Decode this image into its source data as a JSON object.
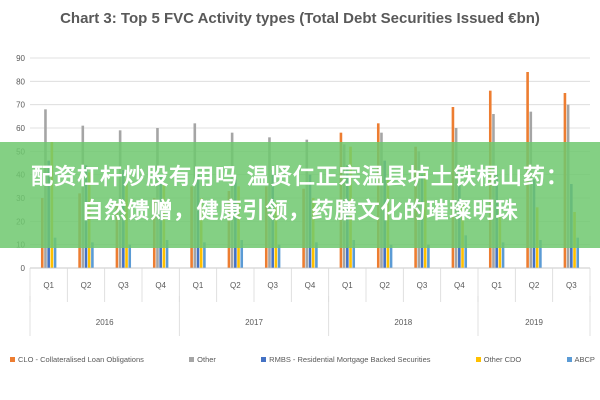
{
  "chart_data": {
    "type": "bar",
    "title": "Chart 3: Top 5 FVC Activity types (Total Debt Securities Issued €bn)",
    "categories": [
      "Q1",
      "Q2",
      "Q3",
      "Q4",
      "Q1",
      "Q2",
      "Q3",
      "Q4",
      "Q1",
      "Q2",
      "Q3",
      "Q4",
      "Q1",
      "Q2",
      "Q3"
    ],
    "groups": [
      {
        "label": "2016",
        "span": 4
      },
      {
        "label": "2017",
        "span": 4
      },
      {
        "label": "2018",
        "span": 4
      },
      {
        "label": "2019",
        "span": 3
      }
    ],
    "ylim": [
      0,
      90
    ],
    "yticks": [
      0,
      10,
      20,
      30,
      40,
      50,
      60,
      70,
      80,
      90
    ],
    "grid": true,
    "legend_position": "bottom",
    "series": [
      {
        "name": "CLO - Collateralised Loan Obligations",
        "color": "#ED7D31",
        "values": [
          30,
          32,
          28,
          30,
          35,
          33,
          35,
          34,
          58,
          62,
          52,
          69,
          76,
          84,
          75
        ]
      },
      {
        "name": "Other",
        "color": "#A5A5A5",
        "values": [
          68,
          61,
          59,
          60,
          62,
          58,
          56,
          55,
          53,
          58,
          50,
          60,
          66,
          67,
          70
        ]
      },
      {
        "name": "RMBS - Residential Mortgage Backed Securities",
        "color": "#4472C4",
        "values": [
          46,
          44,
          42,
          40,
          40,
          38,
          42,
          40,
          44,
          46,
          40,
          42,
          40,
          38,
          36
        ]
      },
      {
        "name": "Other CDO",
        "color": "#FFC000",
        "values": [
          54,
          41,
          38,
          36,
          30,
          35,
          28,
          30,
          52,
          38,
          42,
          28,
          27,
          26,
          24
        ]
      },
      {
        "name": "ABCP",
        "color": "#5B9BD5",
        "values": [
          13,
          11,
          10,
          12,
          11,
          12,
          10,
          11,
          12,
          10,
          10,
          14,
          11,
          12,
          13
        ]
      }
    ]
  },
  "overlay": {
    "text": "配资杠杆炒股有用吗 温贤仁正宗温县垆土铁棍山药：自然馈赠，健康引领，药膳文化的璀璨明珠"
  }
}
